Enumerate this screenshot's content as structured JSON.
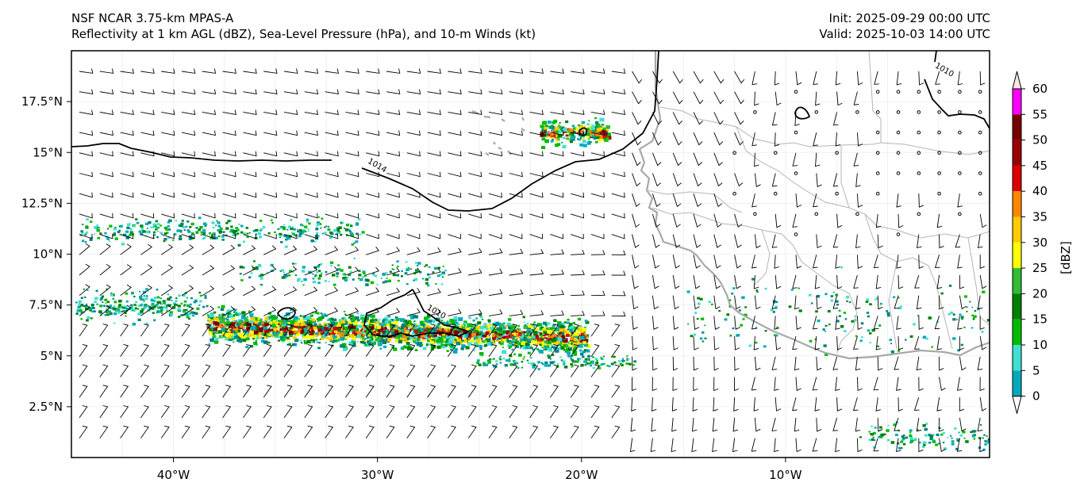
{
  "header": {
    "model_title": "NSF NCAR 3.75-km MPAS-A",
    "fields_title": "Reflectivity at 1 km AGL (dBZ), Sea-Level Pressure (hPa), and 10-m Winds (kt)",
    "init": "Init: 2025-09-29 00:00 UTC",
    "valid": "Valid: 2025-10-03 14:00 UTC"
  },
  "map": {
    "lon_range": [
      -45,
      0
    ],
    "lat_range": [
      0,
      20
    ],
    "x_ticks": [
      {
        "value": -40,
        "label": "40°W"
      },
      {
        "value": -30,
        "label": "30°W"
      },
      {
        "value": -20,
        "label": "20°W"
      },
      {
        "value": -10,
        "label": "10°W"
      }
    ],
    "y_ticks": [
      {
        "value": 17.5,
        "label": "17.5°N"
      },
      {
        "value": 15,
        "label": "15°N"
      },
      {
        "value": 12.5,
        "label": "12.5°N"
      },
      {
        "value": 10,
        "label": "10°N"
      },
      {
        "value": 7.5,
        "label": "7.5°N"
      },
      {
        "value": 5,
        "label": "5°N"
      },
      {
        "value": 2.5,
        "label": "2.5°N"
      }
    ],
    "isobar_labels": [
      {
        "text": "1014",
        "lon": -30.5,
        "lat": 14.5
      },
      {
        "text": "1010",
        "lon": -2.7,
        "lat": 19.2
      },
      {
        "text": "1010",
        "lon": -27.6,
        "lat": 7.3
      }
    ],
    "colors": {
      "coast": "#a8a8a8",
      "border": "#b4b4b4",
      "isobar": "#000000",
      "barb": "#000000"
    }
  },
  "colorbar": {
    "label": "[dBZ]",
    "tick_labels": [
      "0",
      "5",
      "10",
      "15",
      "20",
      "25",
      "30",
      "35",
      "40",
      "45",
      "50",
      "55",
      "60"
    ],
    "colors": [
      "#ffffff",
      "#008080",
      "#00aabb",
      "#40e0d0",
      "#00bb00",
      "#008000",
      "#33bb33",
      "#ffff00",
      "#ffcc00",
      "#ff8800",
      "#dd0000",
      "#990000",
      "#770000",
      "#ff00ff",
      "#ffe6dc"
    ]
  }
}
